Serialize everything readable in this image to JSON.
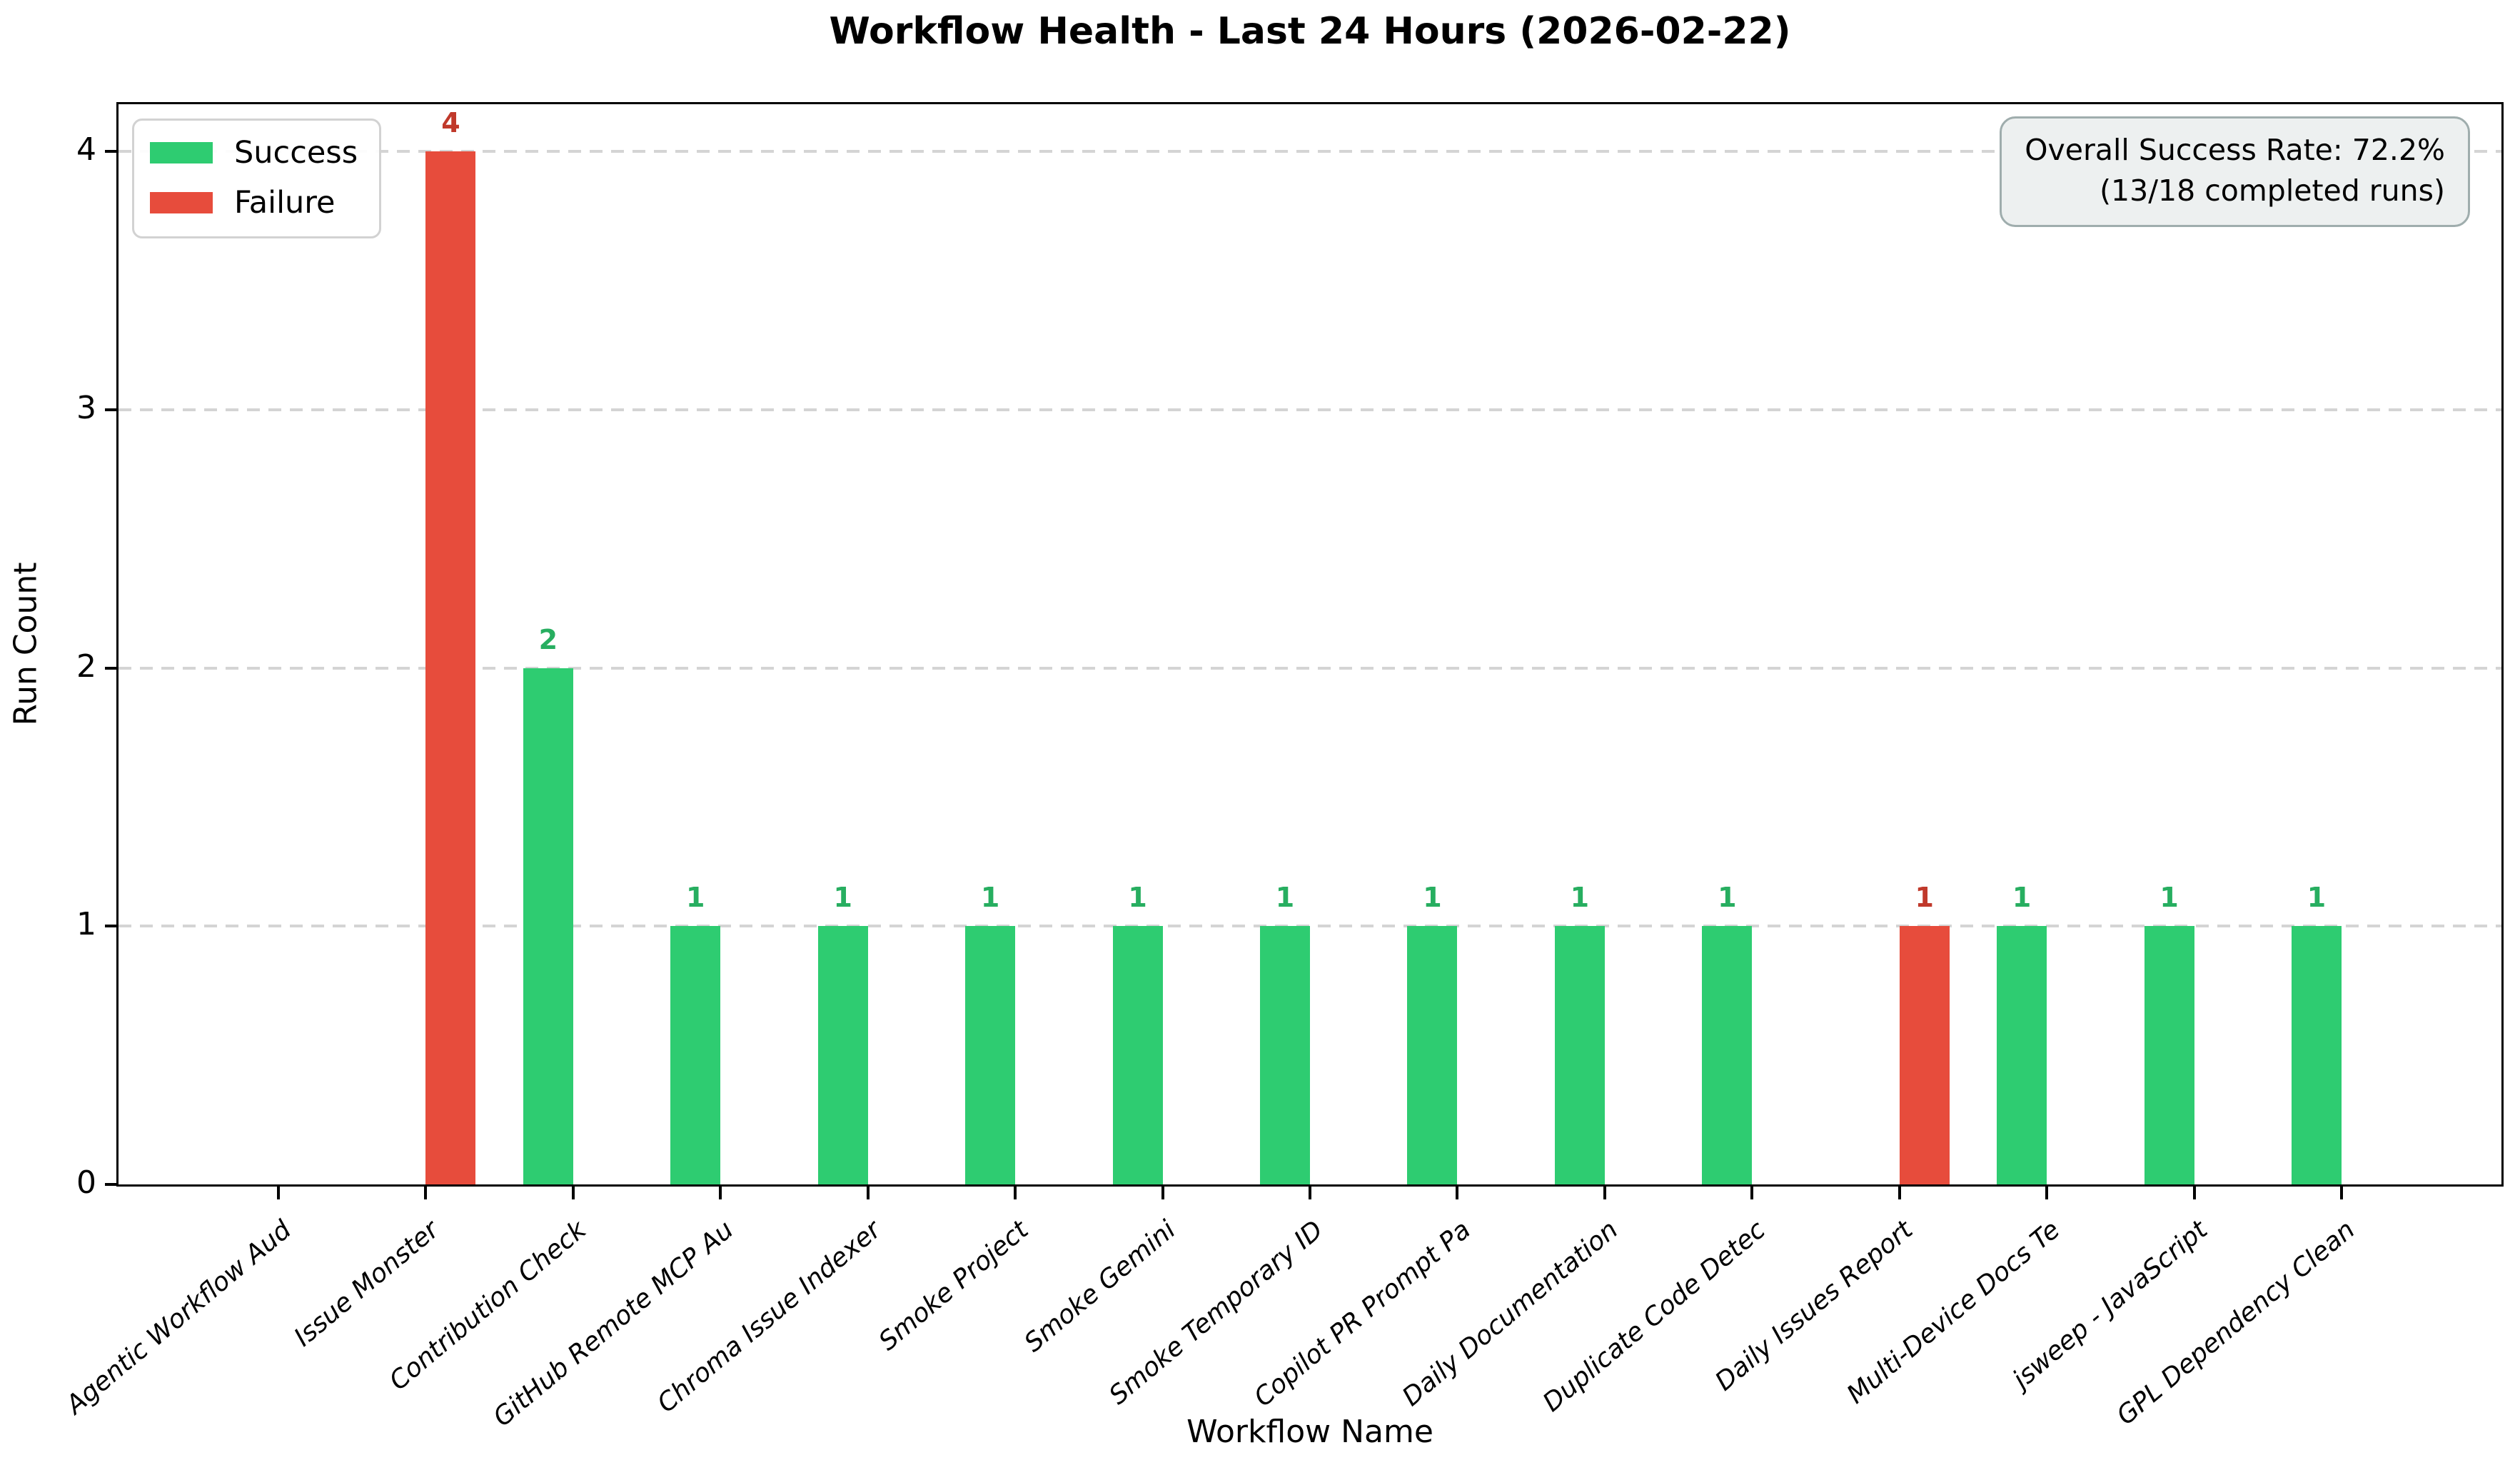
{
  "chart_data": {
    "type": "bar",
    "title": "Workflow Health - Last 24 Hours (2026-02-22)",
    "xlabel": "Workflow Name",
    "ylabel": "Run Count",
    "ylim": [
      0,
      4.2
    ],
    "yticks": [
      0,
      1,
      2,
      3,
      4
    ],
    "grid": "horizontal-dashed",
    "legend_position": "upper-left",
    "legend": [
      {
        "name": "Success",
        "color": "#2ecc71"
      },
      {
        "name": "Failure",
        "color": "#e74c3c"
      }
    ],
    "annotation": {
      "line1": "Overall Success Rate: 72.2%",
      "line2": "(13/18 completed runs)"
    },
    "categories": [
      "Agentic Workflow Aud",
      "Issue Monster",
      "Contribution Check",
      "GitHub Remote MCP Au",
      "Chroma Issue Indexer",
      "Smoke Project",
      "Smoke Gemini",
      "Smoke Temporary ID",
      "Copilot PR Prompt Pa",
      "Daily Documentation",
      "Duplicate Code Detec",
      "Daily Issues Report",
      "Multi-Device Docs Te",
      "jsweep - JavaScript",
      "GPL Dependency Clean"
    ],
    "series": [
      {
        "name": "Success",
        "color": "#2ecc71",
        "label_color": "#27ae60",
        "values": [
          0,
          0,
          2,
          1,
          1,
          1,
          1,
          1,
          1,
          1,
          1,
          0,
          1,
          1,
          1
        ]
      },
      {
        "name": "Failure",
        "color": "#e74c3c",
        "label_color": "#c0392b",
        "values": [
          0,
          4,
          0,
          0,
          0,
          0,
          0,
          0,
          0,
          0,
          0,
          1,
          0,
          0,
          0
        ]
      }
    ],
    "colors": {
      "grid": "#d4d4d4",
      "spine": "#000000",
      "annotation_bg": "#edf0f0",
      "annotation_border": "#9fadad",
      "legend_border": "#d2d2d2"
    }
  }
}
